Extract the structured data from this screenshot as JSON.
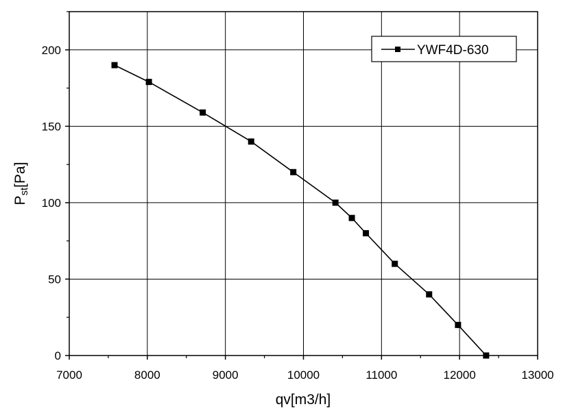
{
  "chart_data": {
    "type": "line",
    "xlabel": "qv[m3/h]",
    "ylabel": {
      "main": "P",
      "sub": "st",
      "unit": "[Pa]"
    },
    "xlim": [
      7000,
      13000
    ],
    "ylim": [
      0,
      225
    ],
    "xticks": [
      7000,
      8000,
      9000,
      10000,
      11000,
      12000,
      13000
    ],
    "yticks": [
      0,
      50,
      100,
      150,
      200
    ],
    "grid": true,
    "legend_position": "top-right",
    "series": [
      {
        "name": "YWF4D-630",
        "marker": "square",
        "color": "#000000",
        "x": [
          7580,
          8020,
          8710,
          9330,
          9870,
          10410,
          10620,
          10800,
          11170,
          11610,
          11980,
          12340
        ],
        "y": [
          190,
          179,
          159,
          140,
          120,
          100,
          90,
          80,
          60,
          40,
          20,
          0
        ]
      }
    ]
  }
}
